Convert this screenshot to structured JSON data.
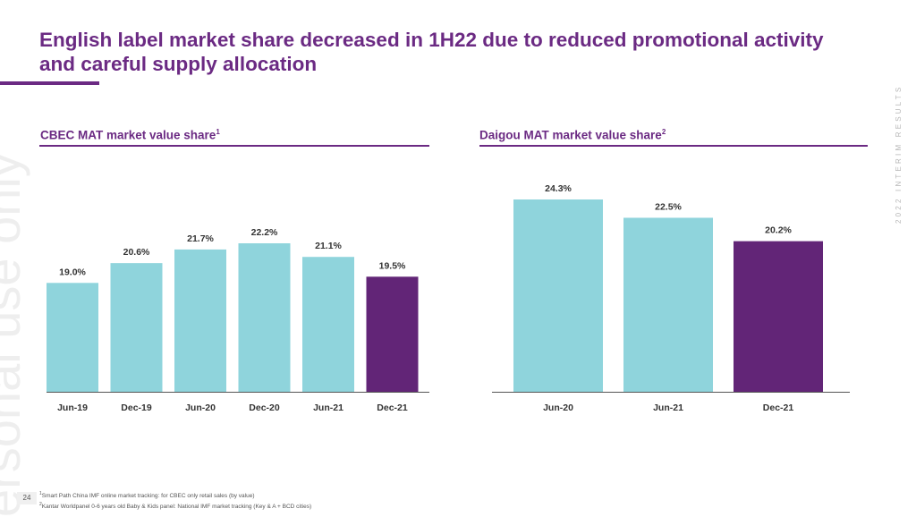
{
  "slide": {
    "title": "English label market share decreased in 1H22 due to reduced promotional activity and careful supply allocation",
    "side_label": "2022 INTERIM RESULTS",
    "watermark": "ersonal use only",
    "page_number": "24",
    "footnotes": [
      {
        "mark": "1",
        "text": "Smart Path China IMF online market tracking: for CBEC only retail sales (by value)"
      },
      {
        "mark": "2",
        "text": "Kantar Worldpanel 0-6 years old Baby & Kids panel: National IMF market tracking (Key & A + BCD cities)"
      }
    ]
  },
  "colors": {
    "brand_purple": "#6b2a83",
    "bar_teal": "#8fd4dc",
    "bar_highlight": "#622577",
    "axis": "#555555"
  },
  "chart_data": [
    {
      "type": "bar",
      "title": "CBEC MAT market value share",
      "title_footnote": "1",
      "categories": [
        "Jun-19",
        "Dec-19",
        "Jun-20",
        "Dec-20",
        "Jun-21",
        "Dec-21"
      ],
      "values": [
        19.0,
        20.6,
        21.7,
        22.2,
        21.1,
        19.5
      ],
      "labels": [
        "19.0%",
        "20.6%",
        "21.7%",
        "22.2%",
        "21.1%",
        "19.5%"
      ],
      "highlight_index": 5,
      "unit": "%",
      "ylim": [
        10.2,
        22.2
      ],
      "xlabel": "",
      "ylabel": "",
      "grid": false
    },
    {
      "type": "bar",
      "title": "Daigou MAT market value share",
      "title_footnote": "2",
      "categories": [
        "Jun-20",
        "Jun-21",
        "Dec-21"
      ],
      "values": [
        24.3,
        22.5,
        20.2
      ],
      "labels": [
        "24.3%",
        "22.5%",
        "20.2%"
      ],
      "highlight_index": 2,
      "unit": "%",
      "ylim": [
        5.4,
        24.3
      ],
      "xlabel": "",
      "ylabel": "",
      "grid": false
    }
  ]
}
